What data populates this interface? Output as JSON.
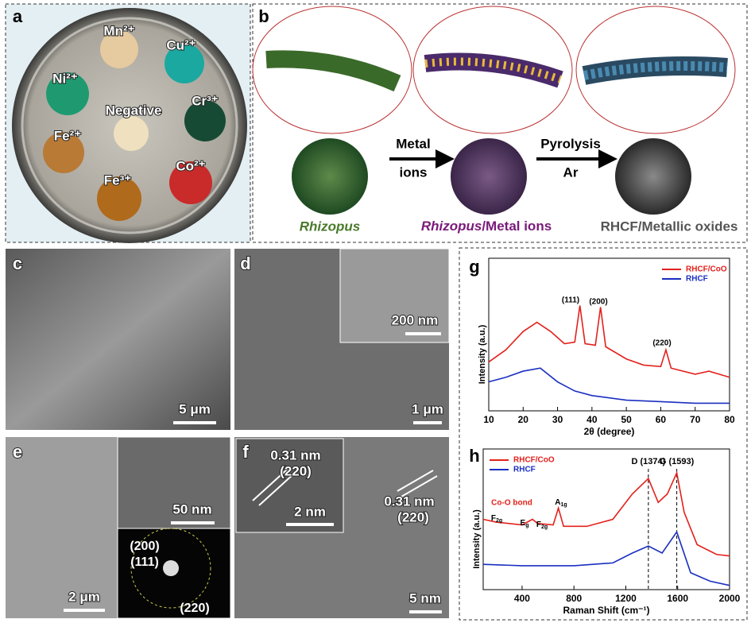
{
  "panel_labels": [
    "a",
    "b",
    "c",
    "d",
    "e",
    "f",
    "g",
    "h"
  ],
  "panel_a": {
    "ions": [
      "Mn²⁺",
      "Cu²⁺",
      "Ni²⁺",
      "Cr³⁺",
      "Fe²⁺",
      "Co²⁺",
      "Fe³⁺"
    ],
    "center": "Negative"
  },
  "panel_b": {
    "arrow1": [
      "Metal",
      "ions"
    ],
    "arrow2": [
      "Pyrolysis",
      "Ar"
    ],
    "stage1": "Rhizopus",
    "stage2": [
      "Rhizopus",
      "/Metal ions"
    ],
    "stage3": "RHCF/Metallic oxides"
  },
  "scale_bars": {
    "c": "5 μm",
    "d_inset": "200 nm",
    "d": "1 μm",
    "e_inset": "50 nm",
    "e": "2 μm",
    "f_inset": "2 nm",
    "f": "5 nm"
  },
  "panel_e": {
    "saed": [
      "(200)",
      "(111)",
      "(220)"
    ]
  },
  "panel_f": {
    "inset_spacing": "0.31 nm",
    "inset_plane": "(220)",
    "spacing": "0.31 nm",
    "plane": "(220)"
  },
  "chart_data": [
    {
      "type": "line",
      "ylabel": "Intensity (a.u.)",
      "xlabel": "2θ (degree)",
      "xlim": [
        10,
        80
      ],
      "xticks": [
        10,
        20,
        30,
        40,
        50,
        60,
        70,
        80
      ],
      "ylim": [
        0,
        100
      ],
      "series": [
        {
          "name": "RHCF/CoO",
          "color": "#e3211c",
          "x": [
            10,
            15,
            20,
            24,
            28,
            32,
            35,
            36.5,
            38,
            41,
            42.5,
            44,
            50,
            55,
            60,
            61.5,
            63,
            70,
            74,
            80
          ],
          "values": [
            32,
            40,
            52,
            58,
            52,
            44,
            45,
            69,
            44,
            43,
            68,
            42,
            34,
            30,
            29,
            40,
            28,
            24,
            26,
            22
          ]
        },
        {
          "name": "RHCF",
          "color": "#1a2fc0",
          "x": [
            10,
            15,
            20,
            25,
            30,
            35,
            40,
            50,
            60,
            70,
            80
          ],
          "values": [
            19,
            22,
            26,
            28,
            19,
            13,
            10,
            7,
            6,
            5,
            5
          ]
        }
      ],
      "annotations": [
        "(111)",
        "(200)",
        "(220)"
      ]
    },
    {
      "type": "line",
      "ylabel": "Intensity (a.u.)",
      "xlabel": "Raman Shift (cm⁻¹)",
      "xlim": [
        100,
        2000
      ],
      "xticks": [
        400,
        800,
        1200,
        1600,
        2000
      ],
      "ylim": [
        0,
        100
      ],
      "series": [
        {
          "name": "RHCF/CoO",
          "color": "#e3211c",
          "x": [
            100,
            200,
            400,
            480,
            520,
            640,
            680,
            720,
            900,
            1100,
            1250,
            1374,
            1450,
            1520,
            1593,
            1650,
            1750,
            1900,
            2000
          ],
          "values": [
            50,
            48,
            46,
            50,
            47,
            46,
            58,
            45,
            45,
            50,
            68,
            79,
            62,
            68,
            83,
            55,
            32,
            25,
            24
          ]
        },
        {
          "name": "RHCF",
          "color": "#1a2fc0",
          "x": [
            100,
            400,
            800,
            1100,
            1250,
            1374,
            1480,
            1593,
            1700,
            1850,
            2000
          ],
          "values": [
            18,
            17,
            17,
            19,
            26,
            31,
            26,
            41,
            12,
            6,
            3
          ]
        }
      ],
      "annotations": [
        {
          "main": "F",
          "sub": "2g"
        },
        {
          "main": "E",
          "sub": "g"
        },
        {
          "main": "F",
          "sub": "2g"
        },
        {
          "main": "A",
          "sub": "1g"
        }
      ],
      "note": "Co-O bond",
      "peaks": [
        {
          "label": "D (1374)",
          "value": 1374
        },
        {
          "label": "G (1593)",
          "value": 1593
        }
      ]
    }
  ]
}
